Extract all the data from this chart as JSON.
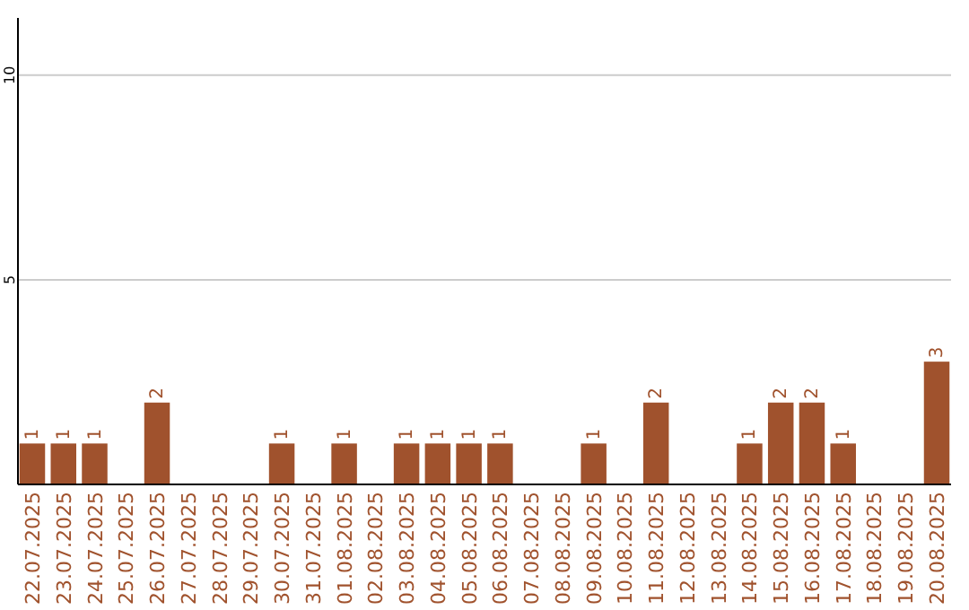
{
  "chart_data": {
    "type": "bar",
    "categories": [
      "22.07.2025",
      "23.07.2025",
      "24.07.2025",
      "25.07.2025",
      "26.07.2025",
      "27.07.2025",
      "28.07.2025",
      "29.07.2025",
      "30.07.2025",
      "31.07.2025",
      "01.08.2025",
      "02.08.2025",
      "03.08.2025",
      "04.08.2025",
      "05.08.2025",
      "06.08.2025",
      "07.08.2025",
      "08.08.2025",
      "09.08.2025",
      "10.08.2025",
      "11.08.2025",
      "12.08.2025",
      "13.08.2025",
      "14.08.2025",
      "15.08.2025",
      "16.08.2025",
      "17.08.2025",
      "18.08.2025",
      "19.08.2025",
      "20.08.2025"
    ],
    "values": [
      1,
      1,
      1,
      0,
      2,
      0,
      0,
      0,
      1,
      0,
      1,
      0,
      1,
      1,
      1,
      1,
      0,
      0,
      1,
      0,
      2,
      0,
      0,
      1,
      2,
      2,
      1,
      0,
      0,
      3
    ],
    "value_labels": [
      "1",
      "1",
      "1",
      null,
      "2",
      null,
      null,
      null,
      "1",
      null,
      "1",
      null,
      "1",
      "1",
      "1",
      "1",
      null,
      null,
      "1",
      null,
      "2",
      null,
      null,
      "1",
      "2",
      "2",
      "1",
      null,
      null,
      "3"
    ],
    "color": "#a0522d",
    "ylim": [
      0,
      11.4
    ],
    "yticks": [
      5,
      10
    ],
    "grid": "y"
  }
}
